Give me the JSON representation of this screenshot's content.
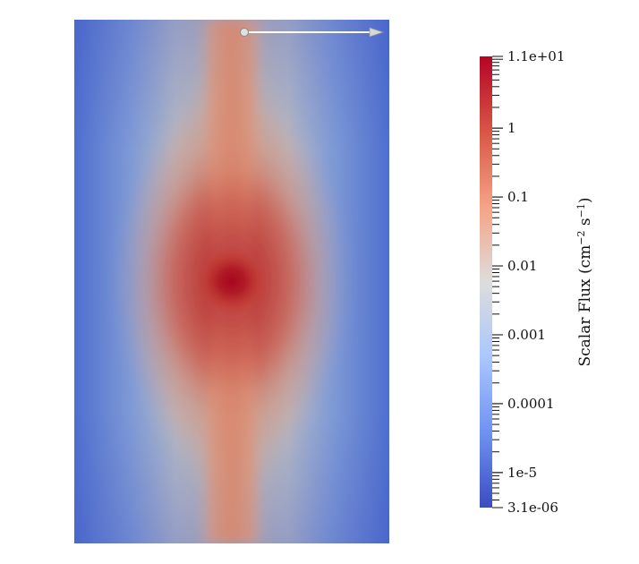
{
  "colorbar": {
    "title_main": "Scalar Flux (cm",
    "title_exp1": "−2",
    "title_mid": " s",
    "title_exp2": "−1",
    "title_end": ")",
    "scale": "log",
    "range": [
      3.1e-06,
      11
    ],
    "colormap": [
      "#3b4cc0",
      "#6f92f3",
      "#aac7fd",
      "#dddddd",
      "#f6a385",
      "#d85646",
      "#b40426"
    ],
    "tick_labels": [
      {
        "label": "1.1e+01",
        "value": 11
      },
      {
        "label": "1",
        "value": 1
      },
      {
        "label": "0.1",
        "value": 0.1
      },
      {
        "label": "0.01",
        "value": 0.01
      },
      {
        "label": "0.001",
        "value": 0.001
      },
      {
        "label": "0.0001",
        "value": 0.0001
      },
      {
        "label": "1e-5",
        "value": 1e-05
      },
      {
        "label": "3.1e-06",
        "value": 3.1e-06
      }
    ]
  }
}
